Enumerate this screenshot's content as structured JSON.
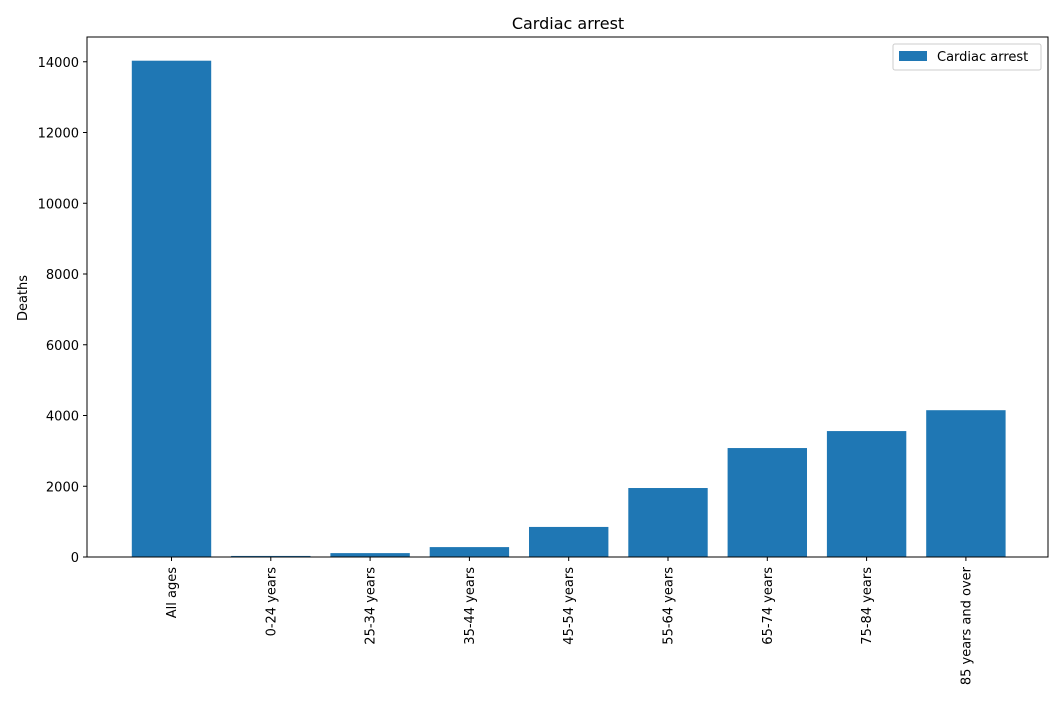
{
  "chart_data": {
    "type": "bar",
    "title": "Cardiac arrest",
    "xlabel": "",
    "ylabel": "Deaths",
    "categories": [
      "All ages",
      "0-24 years",
      "25-34 years",
      "35-44 years",
      "45-54 years",
      "55-64 years",
      "65-74 years",
      "75-84 years",
      "85 years and over"
    ],
    "series": [
      {
        "name": "Cardiac arrest",
        "values": [
          14030,
          30,
          110,
          280,
          850,
          1950,
          3080,
          3560,
          4150
        ]
      }
    ],
    "ylim": [
      0,
      14700
    ],
    "yticks": [
      0,
      2000,
      4000,
      6000,
      8000,
      10000,
      12000,
      14000
    ],
    "grid": false,
    "legend_position": "top-right",
    "color": "#1f77b4"
  }
}
